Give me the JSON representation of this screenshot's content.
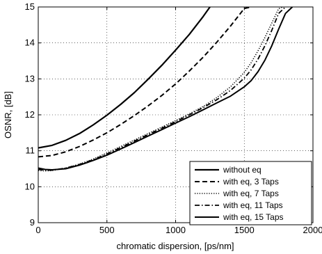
{
  "chart_data": {
    "type": "line",
    "xlabel": "chromatic dispersion, [ps/nm]",
    "ylabel": "OSNR, [dB]",
    "xlim": [
      0,
      2000
    ],
    "ylim": [
      9,
      15
    ],
    "xticks": [
      "0",
      "500",
      "1000",
      "1500",
      "2000"
    ],
    "yticks": [
      "9",
      "10",
      "11",
      "12",
      "13",
      "14",
      "15"
    ],
    "grid": true,
    "legend_position": "bottom-right",
    "series": [
      {
        "name": "without eq",
        "style": "solid-thick",
        "x": [
          0,
          100,
          200,
          300,
          400,
          500,
          600,
          700,
          800,
          900,
          1000,
          1100,
          1200,
          1250
        ],
        "y": [
          11.08,
          11.15,
          11.29,
          11.48,
          11.72,
          11.99,
          12.29,
          12.62,
          12.99,
          13.38,
          13.8,
          14.24,
          14.73,
          15.0
        ]
      },
      {
        "name": "with eq, 3 Taps",
        "style": "dashed",
        "x": [
          0,
          100,
          200,
          300,
          400,
          500,
          600,
          700,
          800,
          900,
          1000,
          1100,
          1200,
          1300,
          1400,
          1500,
          1550
        ],
        "y": [
          10.83,
          10.87,
          10.97,
          11.12,
          11.3,
          11.5,
          11.73,
          11.98,
          12.25,
          12.54,
          12.86,
          13.22,
          13.6,
          14.02,
          14.47,
          14.96,
          15.0
        ]
      },
      {
        "name": "with eq, 7 Taps",
        "style": "dotted",
        "x": [
          0,
          50,
          100,
          200,
          300,
          400,
          500,
          600,
          700,
          800,
          900,
          1000,
          1100,
          1200,
          1300,
          1400,
          1500,
          1550,
          1600,
          1650,
          1700,
          1750,
          1780
        ],
        "y": [
          10.45,
          10.44,
          10.45,
          10.52,
          10.63,
          10.77,
          10.94,
          11.12,
          11.3,
          11.48,
          11.66,
          11.84,
          12.03,
          12.23,
          12.48,
          12.78,
          13.18,
          13.45,
          13.78,
          14.15,
          14.55,
          14.95,
          15.0
        ]
      },
      {
        "name": "with eq, 11 Taps",
        "style": "dash-dot",
        "x": [
          0,
          50,
          100,
          200,
          300,
          400,
          500,
          600,
          700,
          800,
          900,
          1000,
          1100,
          1200,
          1300,
          1400,
          1500,
          1550,
          1600,
          1650,
          1700,
          1750,
          1800
        ],
        "y": [
          10.48,
          10.46,
          10.46,
          10.52,
          10.62,
          10.75,
          10.91,
          11.09,
          11.27,
          11.45,
          11.63,
          11.81,
          12.0,
          12.2,
          12.42,
          12.68,
          13.02,
          13.25,
          13.55,
          13.92,
          14.35,
          14.82,
          15.0
        ]
      },
      {
        "name": "with eq, 15 Taps",
        "style": "solid",
        "x": [
          0,
          50,
          100,
          200,
          300,
          400,
          500,
          600,
          700,
          800,
          900,
          1000,
          1100,
          1200,
          1300,
          1400,
          1500,
          1550,
          1600,
          1650,
          1700,
          1750,
          1800,
          1850
        ],
        "y": [
          10.52,
          10.48,
          10.47,
          10.5,
          10.6,
          10.73,
          10.88,
          11.05,
          11.23,
          11.41,
          11.59,
          11.77,
          11.95,
          12.14,
          12.33,
          12.52,
          12.78,
          12.95,
          13.2,
          13.52,
          13.92,
          14.38,
          14.82,
          15.0
        ]
      }
    ]
  }
}
